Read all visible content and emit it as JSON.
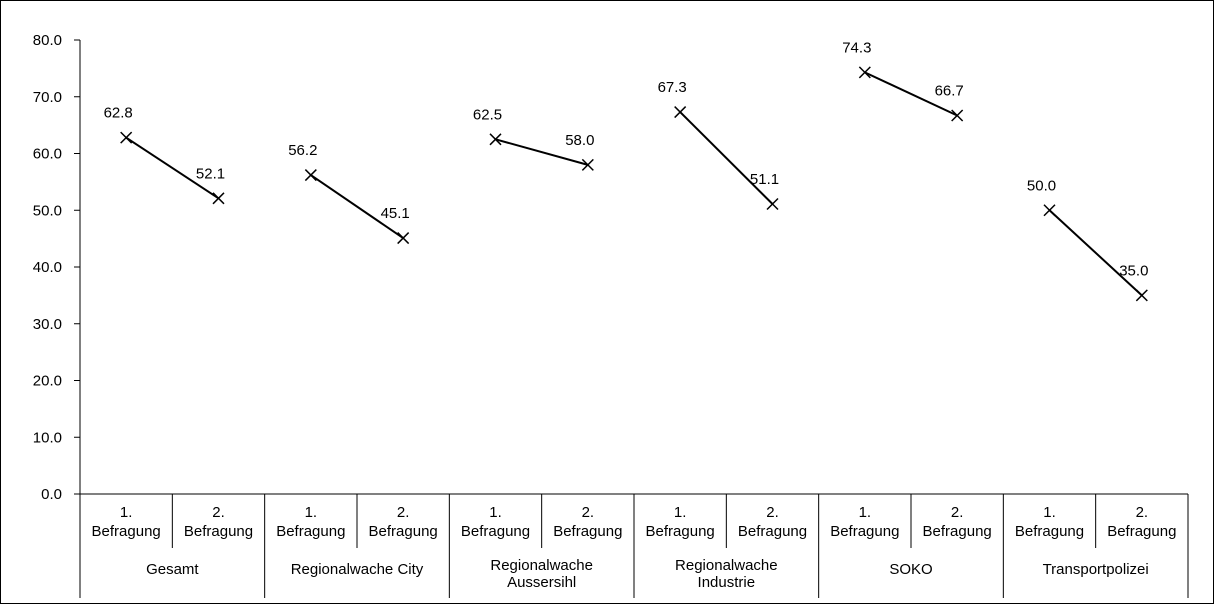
{
  "chart_data": {
    "type": "line",
    "title": "",
    "xlabel": "",
    "ylabel": "",
    "ylim": [
      0,
      80
    ],
    "yticks": [
      "0.0",
      "10.0",
      "20.0",
      "30.0",
      "40.0",
      "50.0",
      "60.0",
      "70.0",
      "80.0"
    ],
    "grid": false,
    "legend": "none",
    "sub_categories": [
      "1. Befragung",
      "2. Befragung"
    ],
    "sub_category_lines": [
      [
        "1.",
        "Befragung"
      ],
      [
        "2.",
        "Befragung"
      ]
    ],
    "groups": [
      {
        "label": "Gesamt",
        "label_lines": [
          "Gesamt"
        ],
        "values": [
          62.8,
          52.1
        ],
        "value_labels": [
          "62.8",
          "52.1"
        ]
      },
      {
        "label": "Regionalwache City",
        "label_lines": [
          "Regionalwache City"
        ],
        "values": [
          56.2,
          45.1
        ],
        "value_labels": [
          "56.2",
          "45.1"
        ]
      },
      {
        "label": "Regionalwache Aussersihl",
        "label_lines": [
          "Regionalwache",
          "Aussersihl"
        ],
        "values": [
          62.5,
          58.0
        ],
        "value_labels": [
          "62.5",
          "58.0"
        ]
      },
      {
        "label": "Regionalwache Industrie",
        "label_lines": [
          "Regionalwache",
          "Industrie"
        ],
        "values": [
          67.3,
          51.1
        ],
        "value_labels": [
          "67.3",
          "51.1"
        ]
      },
      {
        "label": "SOKO",
        "label_lines": [
          "SOKO"
        ],
        "values": [
          74.3,
          66.7
        ],
        "value_labels": [
          "74.3",
          "66.7"
        ]
      },
      {
        "label": "Transportpolizei",
        "label_lines": [
          "Transportpolizei"
        ],
        "values": [
          50.0,
          35.0
        ],
        "value_labels": [
          "50.0",
          "35.0"
        ]
      }
    ],
    "colors": {
      "line": "#000000",
      "marker": "#000000",
      "axis": "#000000"
    },
    "marker": "x-marker"
  }
}
